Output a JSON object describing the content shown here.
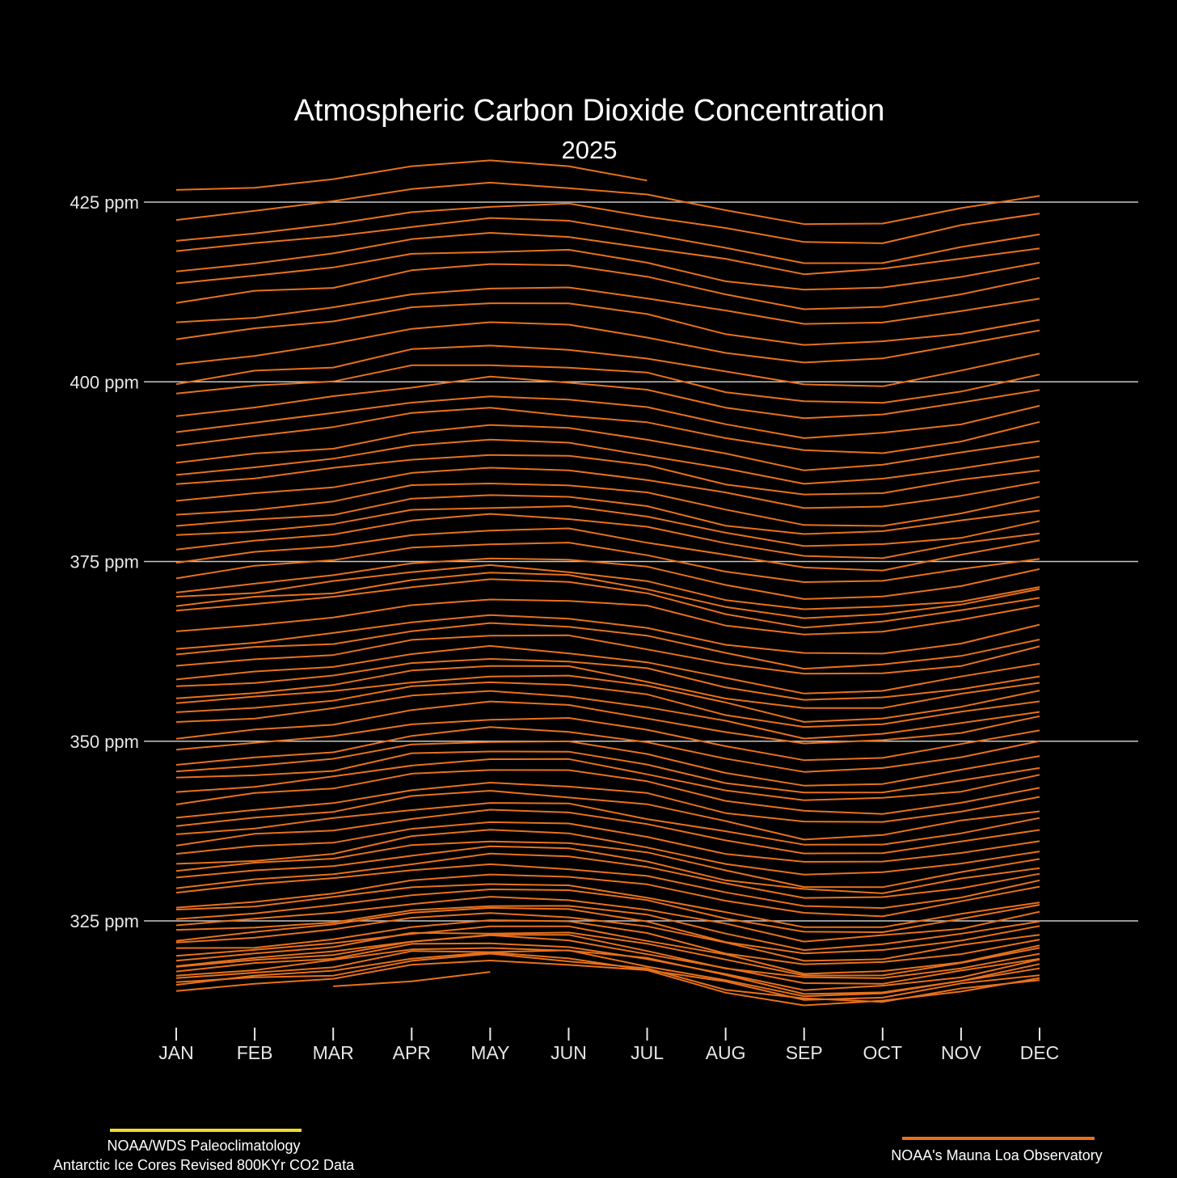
{
  "chart_data": {
    "type": "line",
    "title": "Atmospheric Carbon Dioxide Concentration",
    "subtitle": "2025",
    "categories": [
      "JAN",
      "FEB",
      "MAR",
      "APR",
      "MAY",
      "JUN",
      "JUL",
      "AUG",
      "SEP",
      "OCT",
      "NOV",
      "DEC"
    ],
    "yticks": [
      325,
      350,
      375,
      400,
      425
    ],
    "ytick_labels": [
      "325 ppm",
      "350 ppm",
      "375 ppm",
      "400 ppm",
      "425 ppm"
    ],
    "ylim": [
      311,
      432
    ],
    "grid": "horizontal",
    "colors": {
      "series": "#e8711c",
      "grid": "#c8c8c8",
      "paleo": "#f0dc2a",
      "background": "#000000"
    },
    "seasonal_amplitude": [
      0,
      0.8,
      1.6,
      3.3,
      3.9,
      3.4,
      1.8,
      -0.6,
      -2.6,
      -2.5,
      -1.1,
      0.7
    ],
    "series_jan_baseline": [
      315.7,
      316.1,
      316.5,
      317.0,
      317.5,
      318.0,
      318.5,
      319.0,
      319.6,
      320.1,
      320.8,
      321.7,
      322.5,
      323.3,
      324.1,
      325.3,
      326.2,
      326.9,
      328.8,
      329.7,
      330.8,
      331.9,
      332.8,
      334.4,
      335.8,
      337.2,
      338.2,
      339.8,
      341.5,
      343.0,
      344.5,
      345.6,
      346.9,
      348.9,
      350.6,
      352.6,
      353.6,
      354.9,
      356.0,
      357.4,
      358.5,
      360.1,
      362.1,
      363.1,
      365.1,
      367.9,
      369.0,
      370.1,
      371.0,
      373.0,
      375.0,
      377.0,
      378.4,
      379.9,
      381.6,
      383.1,
      385.8,
      387.3,
      388.9,
      391.4,
      393.3,
      395.6,
      398.1,
      400.1,
      402.8,
      406.3,
      408.2,
      411.2,
      413.8,
      415.5,
      418.3,
      419.6,
      422.8
    ],
    "series_2024": [
      426.7,
      427.0,
      428.2,
      430.0,
      430.8,
      430.0,
      428.0
    ],
    "series_2025": [
      315.9,
      316.6,
      317.9
    ],
    "legend": [
      {
        "label_line1": "NOAA/WDS Paleoclimatology",
        "label_line2": "Antarctic Ice Cores Revised 800KYr CO2 Data",
        "color": "#f0dc2a",
        "position": "bottom-left"
      },
      {
        "label_line1": "NOAA's Mauna Loa Observatory",
        "color": "#e8711c",
        "position": "bottom-right"
      }
    ]
  }
}
